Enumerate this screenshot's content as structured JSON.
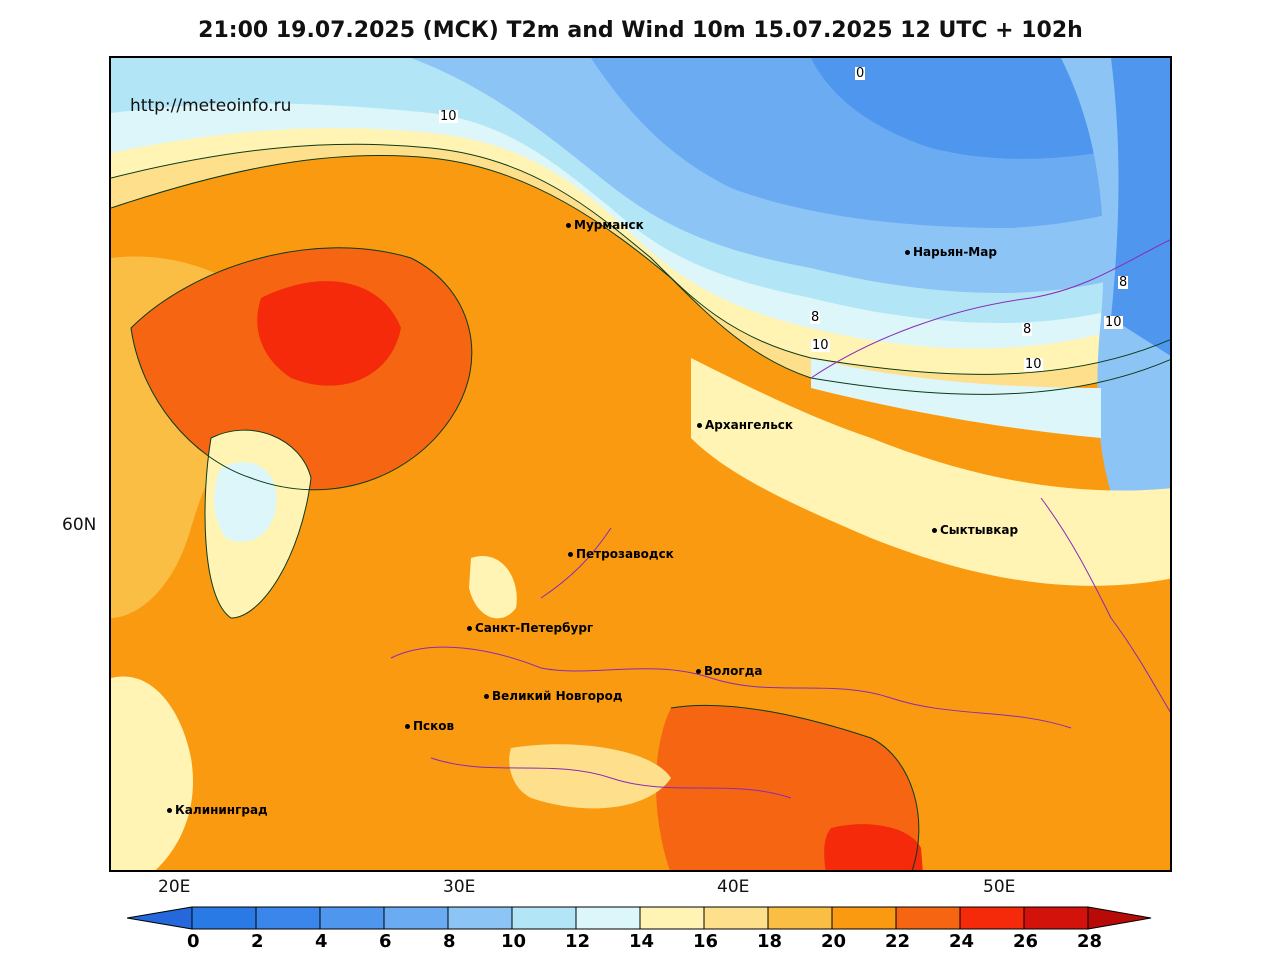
{
  "title": "21:00 19.07.2025 (МСК) T2m and Wind 10m 15.07.2025 12 UTC + 102h",
  "url": "http://meteoinfo.ru",
  "lat_label": "60N",
  "lon_labels": [
    "20E",
    "30E",
    "40E",
    "50E"
  ],
  "cities": [
    "Мурманск",
    "Нарьян-Мар",
    "Архангельск",
    "Сыктывкар",
    "Петрозаводск",
    "Санкт-Петербург",
    "Вологда",
    "Великий Новгород",
    "Псков",
    "Калининград"
  ],
  "isoline_labels": [
    "0",
    "10",
    "8",
    "10",
    "8",
    "10",
    "10",
    "8"
  ],
  "colorbar": {
    "ticks": [
      "0",
      "2",
      "4",
      "6",
      "8",
      "10",
      "12",
      "14",
      "16",
      "18",
      "20",
      "22",
      "24",
      "26",
      "28"
    ],
    "colors": [
      "#2a7ae6",
      "#3a86ea",
      "#4e96ee",
      "#6aabf2",
      "#8dc4f6",
      "#b2e6f6",
      "#dcf6fa",
      "#fff4b4",
      "#fee08c",
      "#fbbe44",
      "#f99a10",
      "#f66612",
      "#f42a0a",
      "#d4120c"
    ],
    "under_color": "#2468dc",
    "over_color": "#b80a06"
  }
}
